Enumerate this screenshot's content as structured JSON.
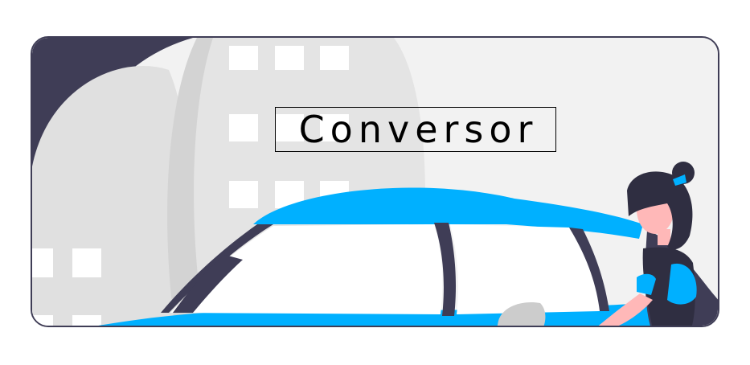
{
  "header": {
    "title": "Conversor"
  },
  "colors": {
    "accent": "#00b0ff",
    "dark": "#3f3d56",
    "background": "#f2f2f2",
    "frame_border": "#3f3d56"
  },
  "illustration": {
    "subject": "woman-with-car-illustration"
  }
}
